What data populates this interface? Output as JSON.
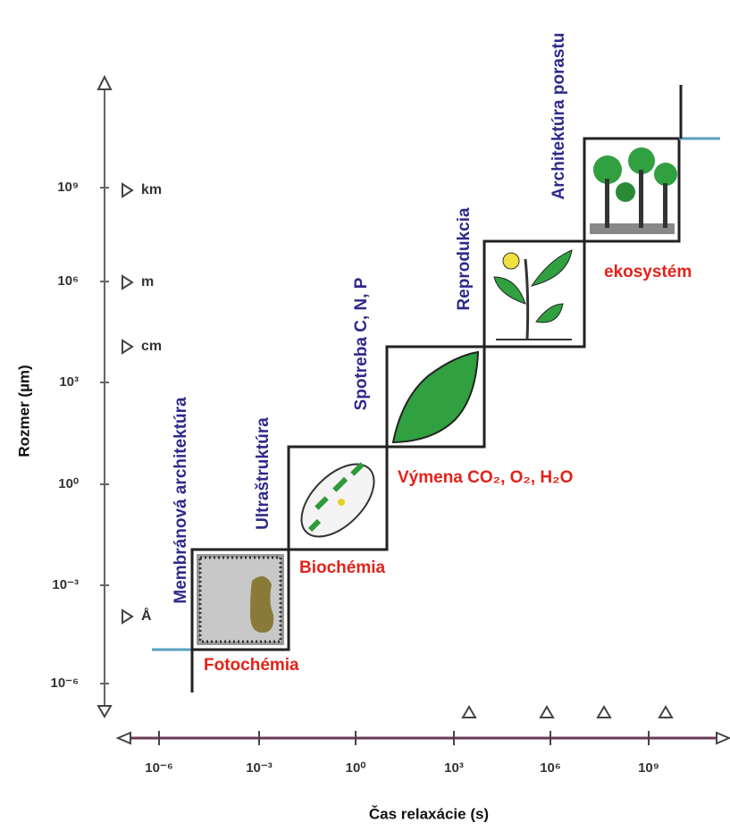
{
  "y_axis": {
    "title": "Rozmer (µm)",
    "ticks": [
      "10⁻⁶",
      "10⁻³",
      "10⁰",
      "10³",
      "10⁶",
      "10⁹"
    ],
    "units": [
      "Å",
      "cm",
      "m",
      "km"
    ]
  },
  "x_axis": {
    "title": "Čas relaxácie (s)",
    "ticks": [
      "10⁻⁶",
      "10⁻³",
      "10⁰",
      "10³",
      "10⁶",
      "10⁹"
    ]
  },
  "levels": [
    {
      "structure": "Membránová architektúra",
      "process": "Fotochémia"
    },
    {
      "structure": "Ultraštruktúra",
      "process": "Biochémia"
    },
    {
      "structure": "Spotreba C, N, P",
      "process": "Výmena CO₂, O₂, H₂O"
    },
    {
      "structure": "Reprodukcia",
      "process": null
    },
    {
      "structure": "Architektúra porastu",
      "process": "ekosystém"
    }
  ]
}
